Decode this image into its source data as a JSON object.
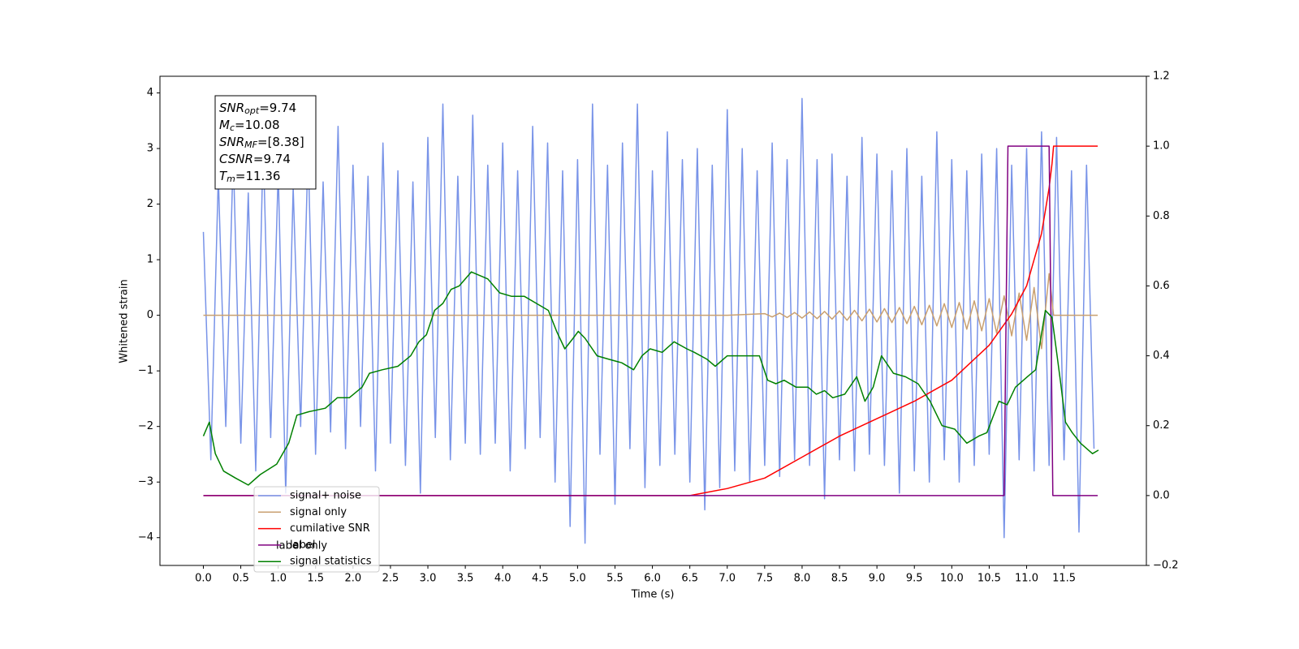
{
  "chart_data": {
    "type": "line",
    "xlabel": "Time (s)",
    "ylabel": "Whitened strain",
    "xlim": [
      -0.58,
      12.6
    ],
    "ylim": [
      -4.5,
      4.3
    ],
    "y2lim": [
      -0.2,
      1.2
    ],
    "xticks": [
      {
        "value": 0,
        "label": "0.0"
      },
      0.5,
      {
        "value": 1,
        "label": "1.0"
      },
      1.5,
      {
        "value": 2,
        "label": "2.0"
      },
      2.5,
      {
        "value": 3,
        "label": "3.0"
      },
      3.5,
      {
        "value": 4,
        "label": "4.0"
      },
      4.5,
      {
        "value": 5,
        "label": "5.0"
      },
      5.5,
      {
        "value": 6,
        "label": "6.0"
      },
      6.5,
      {
        "value": 7,
        "label": "7.0"
      },
      7.5,
      {
        "value": 8,
        "label": "8.0"
      },
      8.5,
      {
        "value": 9,
        "label": "9.0"
      },
      9.5,
      {
        "value": 10,
        "label": "10.0"
      },
      10.5,
      {
        "value": 11,
        "label": "11.0"
      },
      11.5
    ],
    "yticks": [
      {
        "value": -4,
        "label": "−4"
      },
      {
        "value": -3,
        "label": "−3"
      },
      {
        "value": -2,
        "label": "−2"
      },
      {
        "value": -1,
        "label": "−1"
      },
      0,
      1,
      2,
      3,
      4
    ],
    "y2ticks": [
      {
        "value": -0.2,
        "label": "−0.2"
      },
      {
        "value": 0,
        "label": "0.0"
      },
      0.2,
      0.4,
      0.6,
      0.8,
      {
        "value": 1,
        "label": "1.0"
      },
      1.2
    ],
    "legend_loc": "lower left",
    "legend_hidden_text": "label only",
    "annotation": [
      {
        "symbol": "SNR",
        "sub": "opt",
        "text": "=9.74"
      },
      {
        "symbol": "M",
        "sub": "c",
        "text": "=10.08"
      },
      {
        "symbol": "SNR",
        "sub": "MF",
        "text": "=[8.38]"
      },
      {
        "symbol": "CSNR",
        "text": "=9.74"
      },
      {
        "symbol": "T",
        "sub": "m",
        "text": "=11.36"
      }
    ],
    "series": [
      {
        "name": "signal+ noise",
        "color": "#7893e8",
        "axis": "y",
        "x": [
          0.0,
          0.1,
          0.2,
          0.3,
          0.4,
          0.5,
          0.6,
          0.7,
          0.8,
          0.9,
          1.0,
          1.1,
          1.2,
          1.3,
          1.4,
          1.5,
          1.6,
          1.7,
          1.8,
          1.9,
          2.0,
          2.1,
          2.2,
          2.3,
          2.4,
          2.5,
          2.6,
          2.7,
          2.8,
          2.9,
          3.0,
          3.1,
          3.2,
          3.3,
          3.4,
          3.5,
          3.6,
          3.7,
          3.8,
          3.9,
          4.0,
          4.1,
          4.2,
          4.3,
          4.4,
          4.5,
          4.6,
          4.7,
          4.8,
          4.9,
          5.0,
          5.1,
          5.2,
          5.3,
          5.4,
          5.5,
          5.6,
          5.7,
          5.8,
          5.9,
          6.0,
          6.1,
          6.2,
          6.3,
          6.4,
          6.5,
          6.6,
          6.7,
          6.8,
          6.9,
          7.0,
          7.1,
          7.2,
          7.3,
          7.4,
          7.5,
          7.6,
          7.7,
          7.8,
          7.9,
          8.0,
          8.1,
          8.2,
          8.3,
          8.4,
          8.5,
          8.6,
          8.7,
          8.8,
          8.9,
          9.0,
          9.1,
          9.2,
          9.3,
          9.4,
          9.5,
          9.6,
          9.7,
          9.8,
          9.9,
          10.0,
          10.1,
          10.2,
          10.3,
          10.4,
          10.5,
          10.6,
          10.7,
          10.8,
          10.9,
          11.0,
          11.1,
          11.2,
          11.3,
          11.4,
          11.5,
          11.6,
          11.7,
          11.8,
          11.9
        ],
        "values": [
          1.5,
          -2.6,
          2.5,
          -2.0,
          2.9,
          -2.3,
          2.2,
          -2.8,
          3.1,
          -2.2,
          2.6,
          -3.2,
          2.3,
          -2.0,
          3.0,
          -2.5,
          2.4,
          -2.1,
          3.4,
          -2.4,
          2.7,
          -2.0,
          2.5,
          -2.8,
          3.1,
          -2.3,
          2.6,
          -2.7,
          2.4,
          -3.2,
          3.2,
          -2.2,
          3.8,
          -2.6,
          2.5,
          -2.3,
          3.6,
          -2.5,
          2.7,
          -2.3,
          3.1,
          -2.8,
          2.6,
          -2.4,
          3.4,
          -2.2,
          3.1,
          -3.0,
          2.6,
          -3.8,
          2.8,
          -4.1,
          3.8,
          -2.5,
          2.7,
          -3.4,
          3.1,
          -2.4,
          3.8,
          -3.1,
          2.6,
          -2.7,
          3.3,
          -2.5,
          2.8,
          -3.0,
          3.0,
          -3.5,
          2.7,
          -3.1,
          3.7,
          -2.8,
          3.0,
          -3.0,
          2.6,
          -2.7,
          3.1,
          -2.9,
          2.8,
          -2.6,
          3.9,
          -2.7,
          2.8,
          -3.3,
          2.9,
          -2.6,
          2.5,
          -2.8,
          3.2,
          -2.5,
          2.9,
          -2.7,
          2.6,
          -3.2,
          3.0,
          -2.8,
          2.5,
          -3.0,
          3.3,
          -2.6,
          2.8,
          -3.0,
          2.6,
          -2.7,
          2.9,
          -2.5,
          3.0,
          -4.0,
          2.7,
          -2.6,
          3.0,
          -2.8,
          3.3,
          -2.7,
          3.2,
          -2.6,
          2.6,
          -3.9,
          2.7,
          -2.4
        ]
      },
      {
        "name": "signal only",
        "color": "#c9a070",
        "axis": "y",
        "x": [
          0.0,
          7.0,
          7.5,
          7.6,
          7.7,
          7.8,
          7.9,
          8.0,
          8.1,
          8.2,
          8.3,
          8.4,
          8.5,
          8.6,
          8.7,
          8.8,
          8.9,
          9.0,
          9.1,
          9.2,
          9.3,
          9.4,
          9.5,
          9.6,
          9.7,
          9.8,
          9.9,
          10.0,
          10.1,
          10.2,
          10.3,
          10.4,
          10.5,
          10.6,
          10.7,
          10.8,
          10.9,
          11.0,
          11.1,
          11.2,
          11.3,
          11.36,
          11.95
        ],
        "values": [
          0,
          0,
          0.03,
          -0.03,
          0.04,
          -0.04,
          0.05,
          -0.05,
          0.06,
          -0.06,
          0.07,
          -0.07,
          0.08,
          -0.09,
          0.09,
          -0.1,
          0.11,
          -0.12,
          0.12,
          -0.13,
          0.14,
          -0.15,
          0.16,
          -0.17,
          0.18,
          -0.19,
          0.21,
          -0.22,
          0.23,
          -0.25,
          0.26,
          -0.28,
          0.3,
          -0.32,
          0.35,
          -0.37,
          0.4,
          -0.45,
          0.5,
          -0.6,
          0.75,
          0,
          0
        ]
      },
      {
        "name": "cumilative SNR",
        "color": "#ff0000",
        "axis": "y2",
        "x": [
          0,
          6.5,
          7.0,
          7.5,
          8.0,
          8.5,
          9.0,
          9.5,
          10.0,
          10.5,
          10.8,
          11.0,
          11.2,
          11.3,
          11.34,
          11.36,
          11.95
        ],
        "values": [
          0,
          0,
          0.02,
          0.05,
          0.11,
          0.17,
          0.22,
          0.27,
          0.33,
          0.43,
          0.52,
          0.6,
          0.75,
          0.88,
          0.95,
          1.0,
          1.0
        ]
      },
      {
        "name": "label",
        "color": "#800080",
        "axis": "y2",
        "x": [
          0,
          10.7,
          10.75,
          11.3,
          11.35,
          11.95
        ],
        "values": [
          0,
          0,
          1,
          1,
          0,
          0
        ]
      },
      {
        "name": "signal statistics",
        "color": "#008000",
        "axis": "y2",
        "x": [
          0.0,
          0.08,
          0.16,
          0.27,
          0.43,
          0.6,
          0.76,
          0.98,
          1.14,
          1.25,
          1.41,
          1.63,
          1.79,
          1.95,
          2.12,
          2.22,
          2.39,
          2.6,
          2.77,
          2.88,
          2.98,
          3.09,
          3.2,
          3.31,
          3.42,
          3.58,
          3.8,
          3.96,
          4.12,
          4.29,
          4.45,
          4.61,
          4.72,
          4.83,
          4.94,
          5.01,
          5.1,
          5.26,
          5.42,
          5.59,
          5.75,
          5.86,
          5.97,
          6.13,
          6.29,
          6.46,
          6.56,
          6.73,
          6.84,
          7.0,
          7.16,
          7.27,
          7.43,
          7.54,
          7.65,
          7.76,
          7.92,
          8.08,
          8.19,
          8.3,
          8.41,
          8.57,
          8.73,
          8.84,
          8.95,
          9.06,
          9.22,
          9.38,
          9.55,
          9.71,
          9.87,
          10.04,
          10.2,
          10.36,
          10.47,
          10.63,
          10.74,
          10.85,
          11.01,
          11.12,
          11.25,
          11.34,
          11.45,
          11.52,
          11.61,
          11.72,
          11.88,
          11.96
        ],
        "values": [
          0.17,
          0.21,
          0.12,
          0.07,
          0.05,
          0.03,
          0.06,
          0.09,
          0.15,
          0.23,
          0.24,
          0.25,
          0.28,
          0.28,
          0.31,
          0.35,
          0.36,
          0.37,
          0.4,
          0.44,
          0.46,
          0.53,
          0.55,
          0.59,
          0.6,
          0.64,
          0.62,
          0.58,
          0.57,
          0.57,
          0.55,
          0.53,
          0.47,
          0.42,
          0.45,
          0.47,
          0.45,
          0.4,
          0.39,
          0.38,
          0.36,
          0.4,
          0.42,
          0.41,
          0.44,
          0.42,
          0.41,
          0.39,
          0.37,
          0.4,
          0.4,
          0.4,
          0.4,
          0.33,
          0.32,
          0.33,
          0.31,
          0.31,
          0.29,
          0.3,
          0.28,
          0.29,
          0.34,
          0.27,
          0.31,
          0.4,
          0.35,
          0.34,
          0.32,
          0.27,
          0.2,
          0.19,
          0.15,
          0.17,
          0.18,
          0.27,
          0.26,
          0.31,
          0.34,
          0.36,
          0.53,
          0.51,
          0.33,
          0.21,
          0.18,
          0.15,
          0.12,
          0.13
        ]
      }
    ]
  }
}
